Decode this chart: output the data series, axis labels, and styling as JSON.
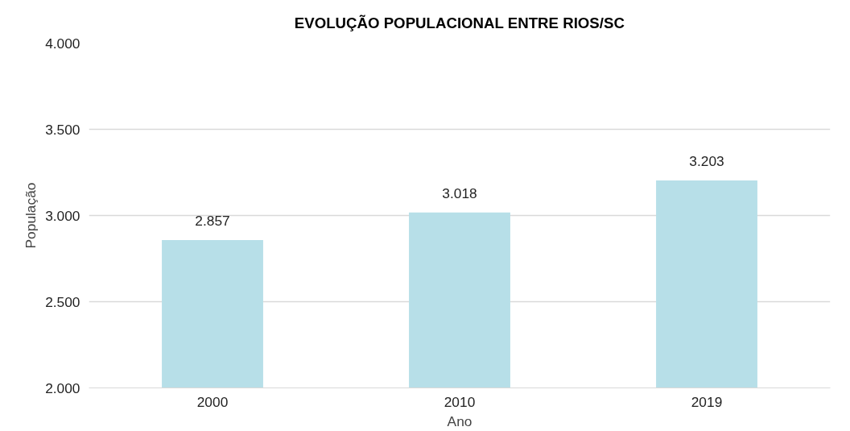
{
  "chart_data": {
    "type": "bar",
    "title": "EVOLUÇÃO POPULACIONAL ENTRE RIOS/SC",
    "xlabel": "Ano",
    "ylabel": "População",
    "categories": [
      "2000",
      "2010",
      "2019"
    ],
    "values": [
      2857,
      3018,
      3203
    ],
    "value_labels": [
      "2.857",
      "3.018",
      "3.203"
    ],
    "color": "#b7dfe8",
    "ylim": [
      2000,
      4000
    ],
    "yticks": [
      {
        "value": 2000,
        "label": "2.000"
      },
      {
        "value": 2500,
        "label": "2.500"
      },
      {
        "value": 3000,
        "label": "3.000"
      },
      {
        "value": 3500,
        "label": "3.500"
      },
      {
        "value": 4000,
        "label": "4.000"
      }
    ],
    "grid": "y"
  }
}
